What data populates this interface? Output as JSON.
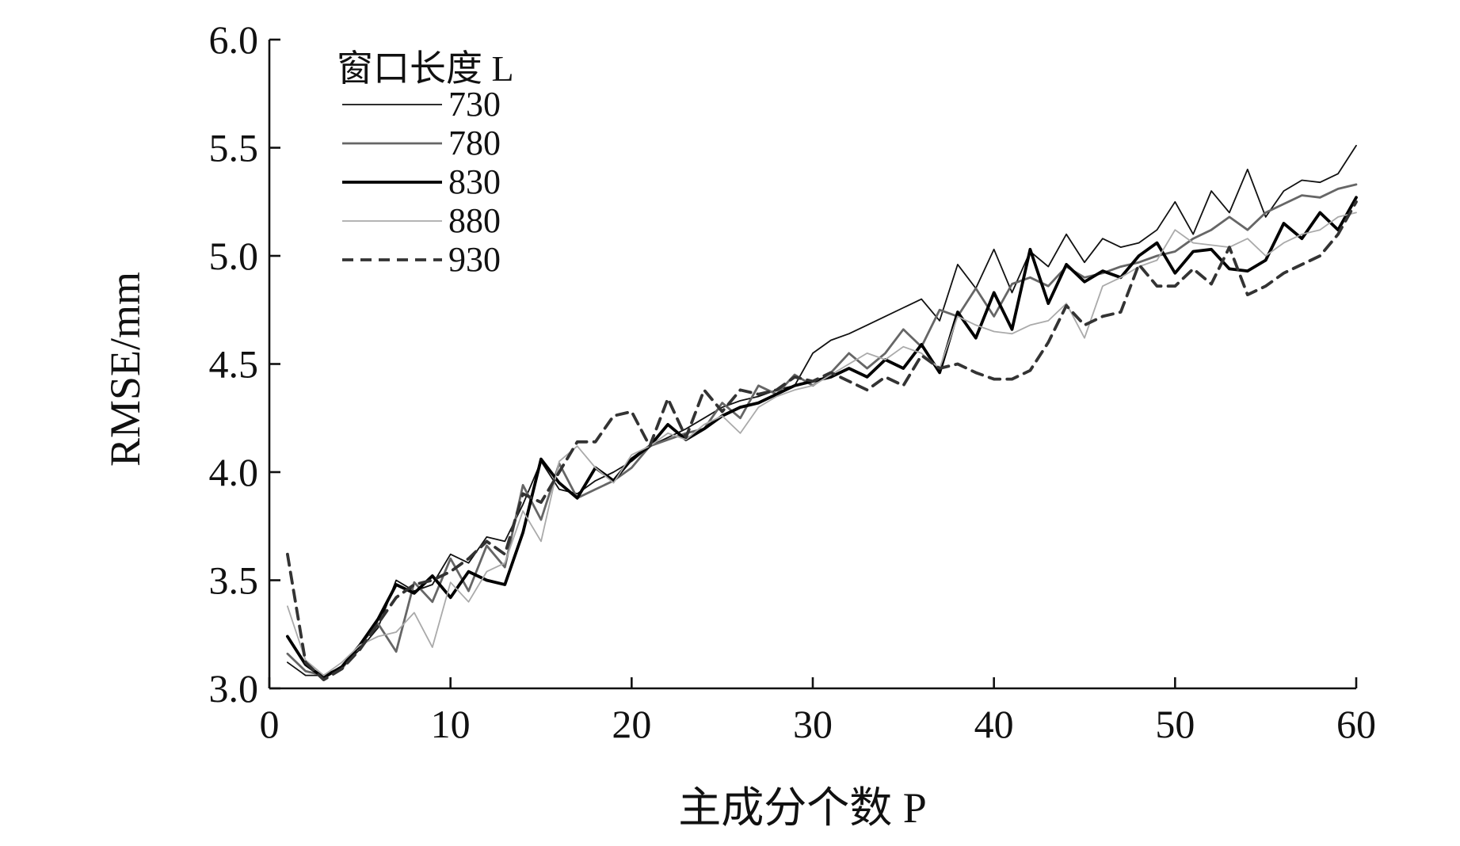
{
  "chart_data": {
    "type": "line",
    "xlabel": "主成分个数 P",
    "ylabel": "RMSE/mm",
    "xlim": [
      0,
      60
    ],
    "ylim": [
      3.0,
      6.0
    ],
    "x_ticks": [
      0,
      10,
      20,
      30,
      40,
      50,
      60
    ],
    "y_ticks": [
      3.0,
      3.5,
      4.0,
      4.5,
      5.0,
      5.5,
      6.0
    ],
    "x_tick_labels": [
      "0",
      "10",
      "20",
      "30",
      "40",
      "50",
      "60"
    ],
    "y_tick_labels": [
      "3.0",
      "3.5",
      "4.0",
      "4.5",
      "5.0",
      "5.5",
      "6.0"
    ],
    "grid": false,
    "legend": {
      "title": "窗口长度 L",
      "placement": "top-left"
    },
    "x": [
      1,
      2,
      3,
      4,
      5,
      6,
      7,
      8,
      9,
      10,
      11,
      12,
      13,
      14,
      15,
      16,
      17,
      18,
      19,
      20,
      21,
      22,
      23,
      24,
      25,
      26,
      27,
      28,
      29,
      30,
      31,
      32,
      33,
      34,
      35,
      36,
      37,
      38,
      39,
      40,
      41,
      42,
      43,
      44,
      45,
      46,
      47,
      48,
      49,
      50,
      51,
      52,
      53,
      54,
      55,
      56,
      57,
      58,
      59,
      60
    ],
    "series": [
      {
        "name": "730",
        "color": "#111111",
        "dash": "solid",
        "width": "thin",
        "values": [
          3.12,
          3.06,
          3.06,
          3.1,
          3.18,
          3.28,
          3.5,
          3.45,
          3.48,
          3.62,
          3.58,
          3.7,
          3.68,
          3.85,
          4.05,
          3.92,
          3.9,
          3.96,
          4.0,
          4.05,
          4.12,
          4.16,
          4.2,
          4.25,
          4.3,
          4.33,
          4.35,
          4.38,
          4.4,
          4.55,
          4.61,
          4.64,
          4.68,
          4.72,
          4.76,
          4.8,
          4.7,
          4.96,
          4.85,
          5.03,
          4.83,
          5.02,
          4.95,
          5.1,
          4.97,
          5.08,
          5.04,
          5.06,
          5.12,
          5.25,
          5.1,
          5.3,
          5.2,
          5.4,
          5.18,
          5.3,
          5.35,
          5.34,
          5.38,
          5.51
        ]
      },
      {
        "name": "780",
        "color": "#666666",
        "dash": "solid",
        "width": "medium",
        "values": [
          3.16,
          3.08,
          3.06,
          3.09,
          3.2,
          3.3,
          3.17,
          3.49,
          3.4,
          3.6,
          3.45,
          3.66,
          3.56,
          3.94,
          3.78,
          4.04,
          3.88,
          3.92,
          3.96,
          4.02,
          4.12,
          4.15,
          4.18,
          4.2,
          4.32,
          4.25,
          4.4,
          4.36,
          4.45,
          4.4,
          4.46,
          4.55,
          4.48,
          4.55,
          4.66,
          4.58,
          4.75,
          4.72,
          4.85,
          4.72,
          4.87,
          4.9,
          4.86,
          4.95,
          4.9,
          4.92,
          4.95,
          4.97,
          5.0,
          5.02,
          5.08,
          5.12,
          5.18,
          5.12,
          5.2,
          5.24,
          5.28,
          5.27,
          5.31,
          5.33
        ]
      },
      {
        "name": "830",
        "color": "#000000",
        "dash": "solid",
        "width": "thick",
        "values": [
          3.24,
          3.11,
          3.05,
          3.1,
          3.2,
          3.32,
          3.48,
          3.44,
          3.52,
          3.42,
          3.54,
          3.5,
          3.48,
          3.72,
          4.06,
          3.95,
          3.88,
          4.02,
          3.96,
          4.06,
          4.12,
          4.22,
          4.15,
          4.2,
          4.26,
          4.3,
          4.32,
          4.36,
          4.4,
          4.42,
          4.44,
          4.48,
          4.44,
          4.52,
          4.48,
          4.59,
          4.46,
          4.74,
          4.62,
          4.83,
          4.66,
          5.03,
          4.78,
          4.96,
          4.88,
          4.93,
          4.9,
          5.0,
          5.06,
          4.92,
          5.02,
          5.03,
          4.94,
          4.93,
          4.98,
          5.15,
          5.08,
          5.2,
          5.12,
          5.27
        ]
      },
      {
        "name": "880",
        "color": "#aaaaaa",
        "dash": "solid",
        "width": "thin",
        "values": [
          3.38,
          3.13,
          3.06,
          3.12,
          3.2,
          3.24,
          3.26,
          3.35,
          3.19,
          3.49,
          3.4,
          3.54,
          3.58,
          3.82,
          3.68,
          4.05,
          4.12,
          4.02,
          3.95,
          4.08,
          4.12,
          4.18,
          4.15,
          4.22,
          4.26,
          4.18,
          4.3,
          4.35,
          4.38,
          4.4,
          4.45,
          4.5,
          4.55,
          4.52,
          4.58,
          4.55,
          4.48,
          4.72,
          4.68,
          4.65,
          4.64,
          4.68,
          4.7,
          4.78,
          4.62,
          4.86,
          4.9,
          4.95,
          4.98,
          5.12,
          5.06,
          5.05,
          5.04,
          5.08,
          5.0,
          5.06,
          5.1,
          5.12,
          5.18,
          5.2
        ]
      },
      {
        "name": "930",
        "color": "#333333",
        "dash": "dashed",
        "width": "thick",
        "values": [
          3.62,
          3.12,
          3.04,
          3.09,
          3.18,
          3.3,
          3.42,
          3.48,
          3.5,
          3.54,
          3.6,
          3.68,
          3.62,
          3.9,
          3.86,
          4.0,
          4.14,
          4.14,
          4.26,
          4.28,
          4.12,
          4.34,
          4.16,
          4.38,
          4.28,
          4.38,
          4.36,
          4.38,
          4.44,
          4.42,
          4.46,
          4.42,
          4.38,
          4.44,
          4.4,
          4.54,
          4.48,
          4.5,
          4.46,
          4.43,
          4.43,
          4.47,
          4.6,
          4.77,
          4.68,
          4.72,
          4.74,
          4.96,
          4.86,
          4.86,
          4.94,
          4.87,
          5.04,
          4.82,
          4.86,
          4.92,
          4.96,
          5.0,
          5.1,
          5.25
        ]
      }
    ]
  }
}
